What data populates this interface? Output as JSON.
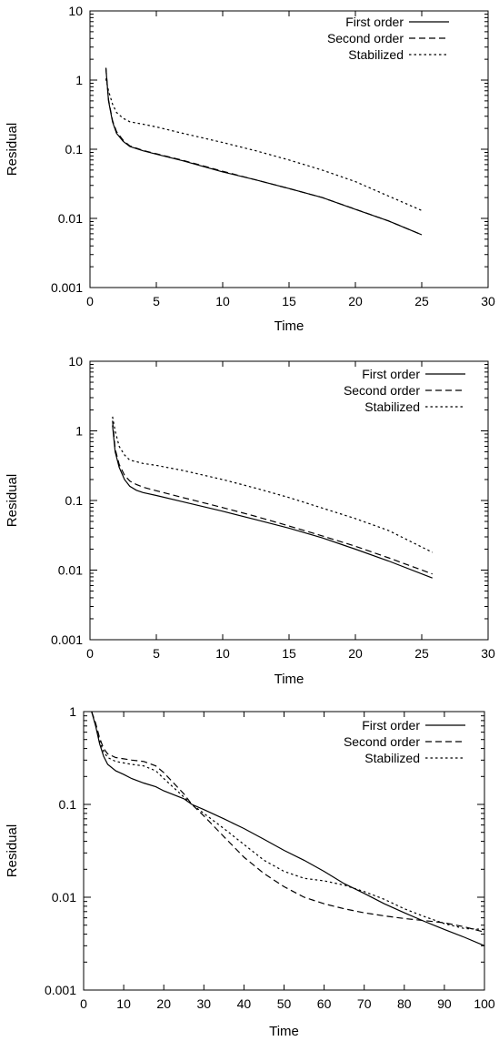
{
  "chart_data": [
    {
      "type": "line",
      "xlabel": "Time",
      "ylabel": "Residual",
      "xlim": [
        0,
        30
      ],
      "ylim": [
        0.001,
        10
      ],
      "yscale": "log",
      "xticks": [
        0,
        5,
        10,
        15,
        20,
        25,
        30
      ],
      "yticks": [
        0.001,
        0.01,
        0.1,
        1,
        10
      ],
      "ytick_labels": [
        "0.001",
        "0.01",
        "0.1",
        "1",
        "10"
      ],
      "legend_position": "top-right",
      "series": [
        {
          "name": "First order",
          "style": "solid",
          "x": [
            1.2,
            1.4,
            1.7,
            2.0,
            2.5,
            3.0,
            4,
            5,
            7,
            10,
            12.5,
            15,
            17.5,
            20,
            22.5,
            25
          ],
          "y": [
            1.5,
            0.5,
            0.25,
            0.17,
            0.13,
            0.11,
            0.095,
            0.085,
            0.068,
            0.047,
            0.036,
            0.027,
            0.02,
            0.0135,
            0.0092,
            0.0058
          ]
        },
        {
          "name": "Second order",
          "style": "dashed",
          "x": [
            1.2,
            1.4,
            1.7,
            2.0,
            2.5,
            3.0,
            4,
            5,
            7,
            10,
            12.5,
            15,
            17.5,
            20,
            22.5,
            25
          ],
          "y": [
            1.5,
            0.52,
            0.26,
            0.18,
            0.135,
            0.112,
            0.096,
            0.086,
            0.069,
            0.048,
            0.036,
            0.027,
            0.02,
            0.0136,
            0.0092,
            0.0058
          ]
        },
        {
          "name": "Stabilized",
          "style": "dotted",
          "x": [
            1.2,
            1.4,
            1.7,
            2.0,
            2.5,
            3.0,
            4,
            5,
            7,
            10,
            12.5,
            15,
            17.5,
            20,
            22.5,
            25
          ],
          "y": [
            1.05,
            0.7,
            0.45,
            0.34,
            0.28,
            0.25,
            0.23,
            0.21,
            0.17,
            0.125,
            0.095,
            0.07,
            0.05,
            0.034,
            0.021,
            0.013
          ]
        }
      ]
    },
    {
      "type": "line",
      "xlabel": "Time",
      "ylabel": "Residual",
      "xlim": [
        0,
        30
      ],
      "ylim": [
        0.001,
        10
      ],
      "yscale": "log",
      "xticks": [
        0,
        5,
        10,
        15,
        20,
        25,
        30
      ],
      "yticks": [
        0.001,
        0.01,
        0.1,
        1,
        10
      ],
      "ytick_labels": [
        "0.001",
        "0.01",
        "0.1",
        "1",
        "10"
      ],
      "legend_position": "top-right",
      "series": [
        {
          "name": "First order",
          "style": "solid",
          "x": [
            1.7,
            1.9,
            2.2,
            2.6,
            3.0,
            3.5,
            4,
            5,
            7,
            10,
            12.5,
            15,
            17.5,
            20,
            22.5,
            25.8
          ],
          "y": [
            1.2,
            0.5,
            0.3,
            0.2,
            0.16,
            0.14,
            0.13,
            0.118,
            0.096,
            0.07,
            0.053,
            0.04,
            0.029,
            0.02,
            0.0135,
            0.0077
          ]
        },
        {
          "name": "Second order",
          "style": "dashed",
          "x": [
            1.7,
            1.9,
            2.2,
            2.6,
            3.0,
            3.5,
            4,
            5,
            7,
            10,
            12.5,
            15,
            17.5,
            20,
            22.5,
            25.8
          ],
          "y": [
            1.4,
            0.55,
            0.33,
            0.23,
            0.19,
            0.17,
            0.155,
            0.138,
            0.11,
            0.079,
            0.059,
            0.043,
            0.031,
            0.022,
            0.015,
            0.0088
          ]
        },
        {
          "name": "Stabilized",
          "style": "dotted",
          "x": [
            1.7,
            1.9,
            2.2,
            2.6,
            3.0,
            3.5,
            4,
            5,
            7,
            10,
            12.5,
            15,
            17.5,
            20,
            22.5,
            25.8
          ],
          "y": [
            1.6,
            1.0,
            0.6,
            0.45,
            0.38,
            0.36,
            0.34,
            0.32,
            0.27,
            0.2,
            0.15,
            0.11,
            0.078,
            0.055,
            0.037,
            0.018
          ]
        }
      ]
    },
    {
      "type": "line",
      "xlabel": "Time",
      "ylabel": "Residual",
      "xlim": [
        0,
        100
      ],
      "ylim": [
        0.001,
        1
      ],
      "yscale": "log",
      "xticks": [
        0,
        10,
        20,
        30,
        40,
        50,
        60,
        70,
        80,
        90,
        100
      ],
      "yticks": [
        0.001,
        0.01,
        0.1,
        1
      ],
      "ytick_labels": [
        "0.001",
        "0.01",
        "0.1",
        "1"
      ],
      "legend_position": "top-right",
      "series": [
        {
          "name": "First order",
          "style": "solid",
          "x": [
            2,
            3,
            4,
            5,
            6,
            8,
            10,
            12,
            15,
            18,
            20,
            25,
            27,
            30,
            35,
            40,
            45,
            50,
            55,
            60,
            65,
            70,
            75,
            80,
            85,
            90,
            95,
            100
          ],
          "y": [
            1.0,
            0.7,
            0.45,
            0.33,
            0.27,
            0.23,
            0.21,
            0.19,
            0.17,
            0.155,
            0.14,
            0.115,
            0.1,
            0.088,
            0.07,
            0.055,
            0.042,
            0.032,
            0.025,
            0.019,
            0.014,
            0.011,
            0.0085,
            0.0068,
            0.0055,
            0.0045,
            0.0037,
            0.003
          ]
        },
        {
          "name": "Second order",
          "style": "dashed",
          "x": [
            2,
            3,
            4,
            5,
            6,
            8,
            10,
            12,
            15,
            18,
            20,
            25,
            27,
            30,
            35,
            40,
            45,
            50,
            55,
            60,
            65,
            70,
            75,
            80,
            85,
            90,
            95,
            100
          ],
          "y": [
            1.0,
            0.75,
            0.52,
            0.4,
            0.35,
            0.32,
            0.31,
            0.3,
            0.29,
            0.26,
            0.22,
            0.13,
            0.1,
            0.075,
            0.045,
            0.027,
            0.018,
            0.013,
            0.01,
            0.0085,
            0.0075,
            0.0068,
            0.0063,
            0.0059,
            0.0056,
            0.0053,
            0.0048,
            0.0042
          ]
        },
        {
          "name": "Stabilized",
          "style": "dotted",
          "x": [
            2,
            3,
            4,
            5,
            6,
            8,
            10,
            12,
            15,
            18,
            20,
            25,
            27,
            30,
            35,
            40,
            45,
            50,
            55,
            60,
            65,
            70,
            75,
            80,
            85,
            90,
            95,
            100
          ],
          "y": [
            1.0,
            0.72,
            0.48,
            0.37,
            0.32,
            0.29,
            0.28,
            0.27,
            0.26,
            0.23,
            0.19,
            0.12,
            0.1,
            0.08,
            0.055,
            0.037,
            0.025,
            0.019,
            0.016,
            0.015,
            0.0135,
            0.0115,
            0.0095,
            0.0075,
            0.0062,
            0.0052,
            0.0046,
            0.0045
          ]
        }
      ]
    }
  ]
}
